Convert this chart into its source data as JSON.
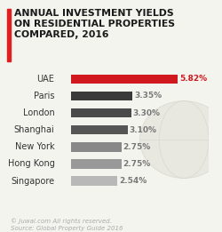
{
  "title_line1": "ANNUAL INVESTMENT YIELDS",
  "title_line2": "ON RESIDENTIAL PROPERTIES",
  "title_line3": "COMPARED, 2016",
  "title_accent_color": "#e02020",
  "categories": [
    "UAE",
    "Paris",
    "London",
    "Shanghai",
    "New York",
    "Hong Kong",
    "Singapore"
  ],
  "values": [
    5.82,
    3.35,
    3.3,
    3.1,
    2.75,
    2.75,
    2.54
  ],
  "labels": [
    "5.82%",
    "3.35%",
    "3.30%",
    "3.10%",
    "2.75%",
    "2.75%",
    "2.54%"
  ],
  "bar_colors": [
    "#d0181e",
    "#3a3a3a",
    "#4a4a4a",
    "#555555",
    "#888888",
    "#999999",
    "#b8b8b8"
  ],
  "label_colors": [
    "#d0181e",
    "#777777",
    "#777777",
    "#777777",
    "#777777",
    "#777777",
    "#777777"
  ],
  "background_color": "#f4f4ef",
  "footer_line1": "© Juwai.com All rights reserved.",
  "footer_line2": "Source: Global Property Guide 2016",
  "watermark_color": "#e8e8e0"
}
